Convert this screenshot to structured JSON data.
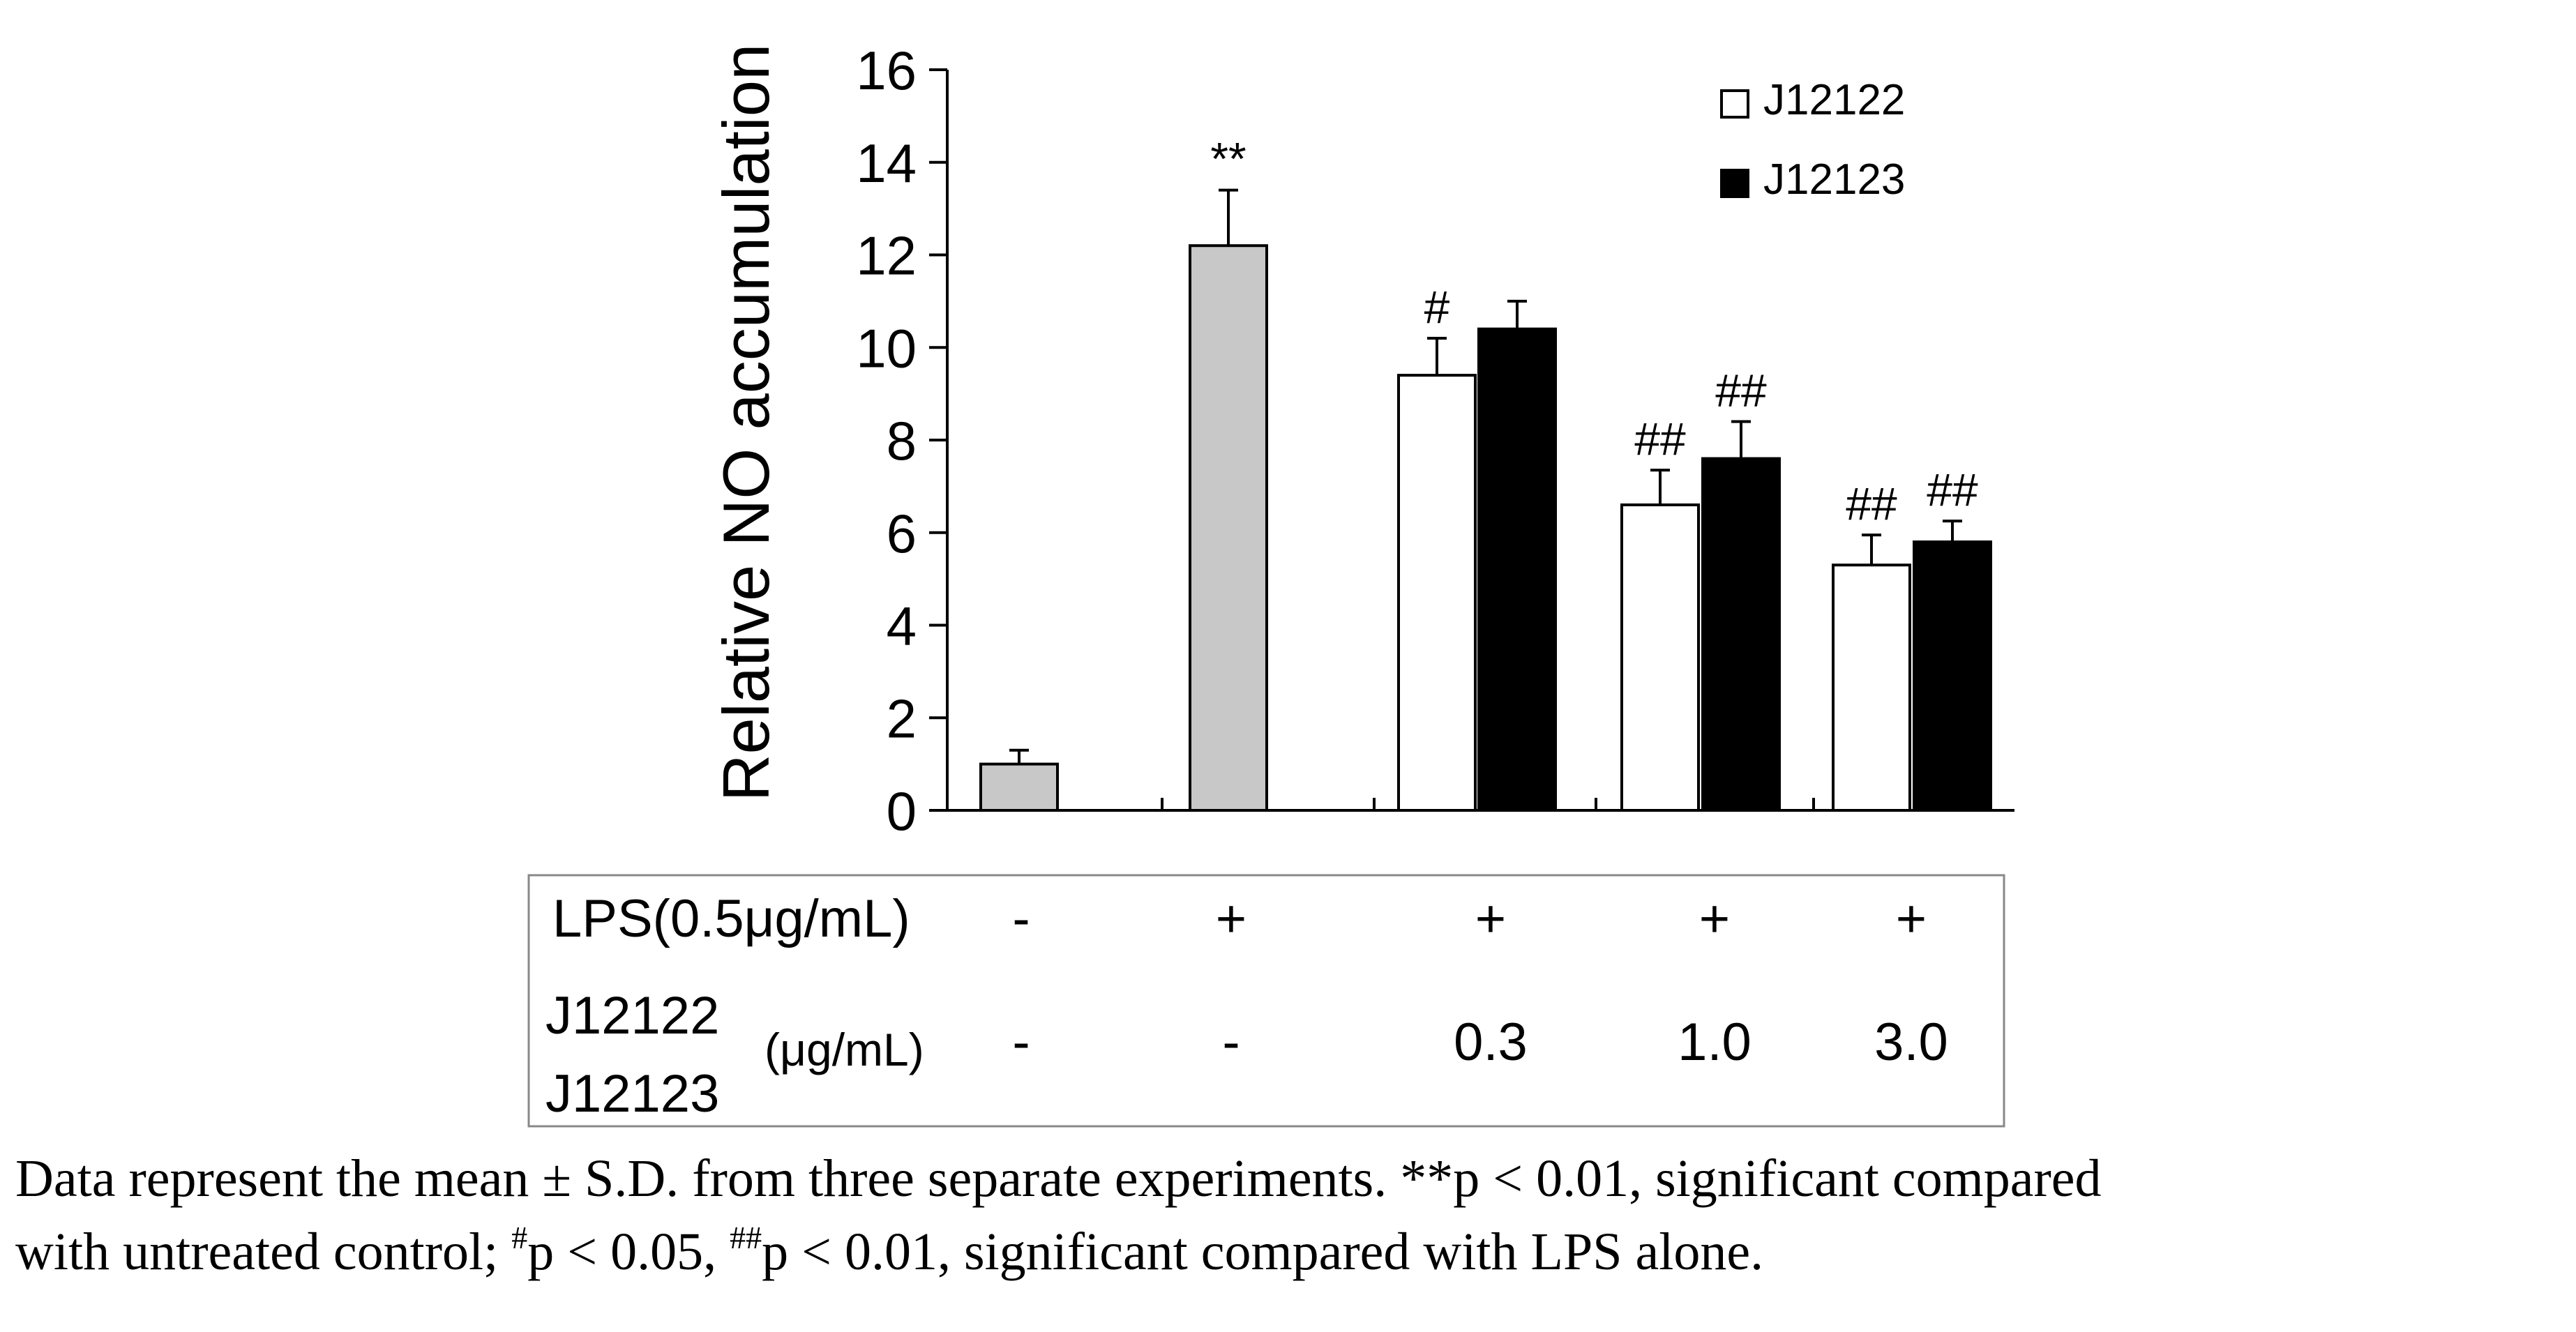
{
  "chart_data": {
    "type": "bar",
    "title": "",
    "xlabel": "",
    "ylabel": "Relative NO accumulation",
    "ylim": [
      0,
      16
    ],
    "yticks": [
      0,
      2,
      4,
      6,
      8,
      10,
      12,
      14,
      16
    ],
    "legend": {
      "placement": "top-right",
      "entries": [
        "J12122",
        "J12123"
      ]
    },
    "colors": {
      "control": "#c8c8c8",
      "J12122": "#ffffff",
      "J12123": "#000000",
      "axis": "#000000"
    },
    "groups": [
      {
        "bars": [
          {
            "series": "control",
            "value": 1.0,
            "error": 0.3,
            "label": ""
          }
        ]
      },
      {
        "bars": [
          {
            "series": "control",
            "value": 12.2,
            "error": 1.2,
            "label": "**"
          }
        ]
      },
      {
        "bars": [
          {
            "series": "J12122",
            "value": 9.4,
            "error": 0.8,
            "label": "#"
          },
          {
            "series": "J12123",
            "value": 10.4,
            "error": 0.6,
            "label": ""
          }
        ]
      },
      {
        "bars": [
          {
            "series": "J12122",
            "value": 6.6,
            "error": 0.75,
            "label": "##"
          },
          {
            "series": "J12123",
            "value": 7.6,
            "error": 0.8,
            "label": "##"
          }
        ]
      },
      {
        "bars": [
          {
            "series": "J12122",
            "value": 5.3,
            "error": 0.65,
            "label": "##"
          },
          {
            "series": "J12123",
            "value": 5.8,
            "error": 0.45,
            "label": "##"
          }
        ]
      }
    ],
    "series": [
      {
        "name": "J12122",
        "values": [
          9.4,
          6.6,
          5.3
        ],
        "errors": [
          0.8,
          0.75,
          0.65
        ]
      },
      {
        "name": "J12123",
        "values": [
          10.4,
          7.6,
          5.8
        ],
        "errors": [
          0.6,
          0.8,
          0.45
        ]
      }
    ],
    "conditions_table": {
      "lps_label": "LPS(0.5μg/mL)",
      "compound_label_line1": "J12122",
      "compound_label_line2": "J12123",
      "compound_unit": "(μg/mL)",
      "lps_values": [
        "-",
        "+",
        "+",
        "+",
        "+"
      ],
      "compound_values": [
        "-",
        "-",
        "0.3",
        "1.0",
        "3.0"
      ]
    }
  },
  "caption": {
    "line1": "Data represent the mean ± S.D. from three separate experiments. **p < 0.01, significant compared",
    "line2_part1": "with untreated control; ",
    "line2_sup1": "#",
    "line2_part2": "p < 0.05, ",
    "line2_sup2": "##",
    "line2_part3": "p < 0.01, significant compared with LPS alone."
  }
}
